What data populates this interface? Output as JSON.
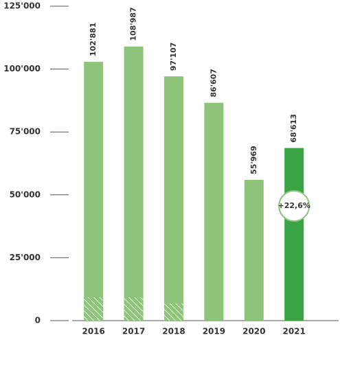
{
  "chart_data": {
    "type": "bar",
    "categories": [
      "2016",
      "2017",
      "2018",
      "2019",
      "2020",
      "2021"
    ],
    "values": [
      102881,
      108987,
      97107,
      86607,
      55969,
      68613
    ],
    "value_labels": [
      "102'881",
      "108'987",
      "97'107",
      "86'607",
      "55'969",
      "68'613"
    ],
    "hatched_values": [
      9300,
      9300,
      6800,
      null,
      null,
      null
    ],
    "colors": [
      "#8dc47a",
      "#8dc47a",
      "#8dc47a",
      "#8dc47a",
      "#8dc47a",
      "#3aa343"
    ],
    "annotation": "+22,6%",
    "ylim": [
      0,
      125000
    ],
    "yticks": [
      0,
      {
        "value": 25000,
        "label": "25'000"
      },
      {
        "value": 50000,
        "label": "50'000"
      },
      {
        "value": 75000,
        "label": "75'000"
      },
      {
        "value": 100000,
        "label": "100'000"
      },
      {
        "value": 125000,
        "label": "125'000"
      }
    ]
  }
}
